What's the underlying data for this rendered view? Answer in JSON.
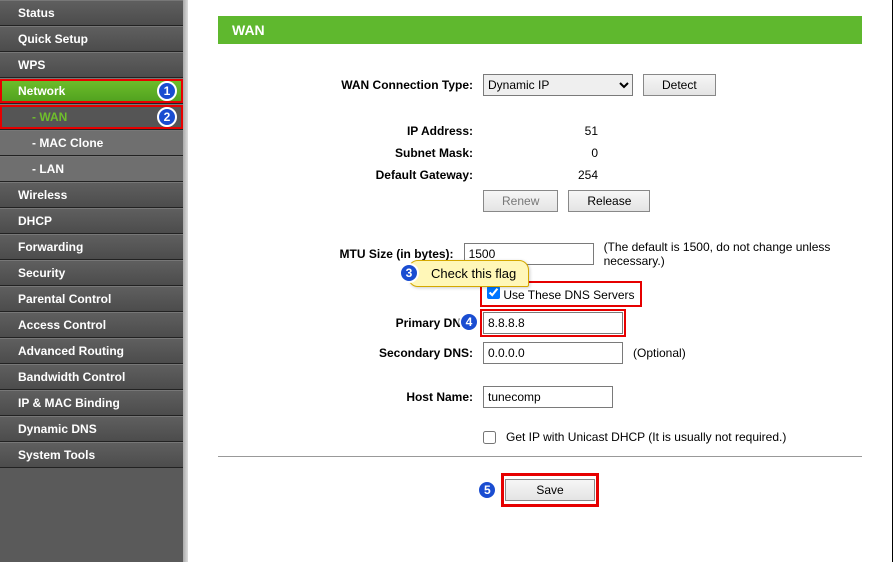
{
  "colors": {
    "accent": "#5fb82e",
    "highlight_red": "#e60000",
    "badge_blue": "#1a4dd1",
    "tooltip_bg": "#fff7b8"
  },
  "sidebar": {
    "items": [
      {
        "label": "Status",
        "type": "top"
      },
      {
        "label": "Quick Setup",
        "type": "top"
      },
      {
        "label": "WPS",
        "type": "top"
      },
      {
        "label": "Network",
        "type": "top",
        "active": true,
        "redbox": true,
        "badge": "1"
      },
      {
        "label": "- WAN",
        "type": "sub",
        "sub_active": true,
        "redbox": true,
        "badge": "2"
      },
      {
        "label": "- MAC Clone",
        "type": "sub"
      },
      {
        "label": "- LAN",
        "type": "sub"
      },
      {
        "label": "Wireless",
        "type": "top"
      },
      {
        "label": "DHCP",
        "type": "top"
      },
      {
        "label": "Forwarding",
        "type": "top"
      },
      {
        "label": "Security",
        "type": "top"
      },
      {
        "label": "Parental Control",
        "type": "top"
      },
      {
        "label": "Access Control",
        "type": "top"
      },
      {
        "label": "Advanced Routing",
        "type": "top"
      },
      {
        "label": "Bandwidth Control",
        "type": "top"
      },
      {
        "label": "IP & MAC Binding",
        "type": "top"
      },
      {
        "label": "Dynamic DNS",
        "type": "top"
      },
      {
        "label": "System Tools",
        "type": "top"
      }
    ]
  },
  "page": {
    "title": "WAN",
    "conn_type_label": "WAN Connection Type:",
    "conn_type_value": "Dynamic IP",
    "detect_btn": "Detect",
    "ip_label": "IP Address:",
    "ip_value": "51",
    "mask_label": "Subnet Mask:",
    "mask_value": "0",
    "gw_label": "Default Gateway:",
    "gw_value": "254",
    "renew_btn": "Renew",
    "release_btn": "Release",
    "mtu_label": "MTU Size (in bytes):",
    "mtu_value": "1500",
    "mtu_note": "(The default is 1500, do not change unless necessary.)",
    "use_dns_label": "Use These DNS Servers",
    "primary_dns_label": "Primary DNS:",
    "primary_dns_value": "8.8.8.8",
    "secondary_dns_label": "Secondary DNS:",
    "secondary_dns_value": "0.0.0.0",
    "optional_note": "(Optional)",
    "host_label": "Host Name:",
    "host_value": "tunecomp",
    "unicast_label": "Get IP with Unicast DHCP (It is usually not required.)",
    "save_btn": "Save"
  },
  "annotations": {
    "tooltip_text": "Check this flag",
    "badge3": "3",
    "badge4": "4",
    "badge5": "5"
  }
}
